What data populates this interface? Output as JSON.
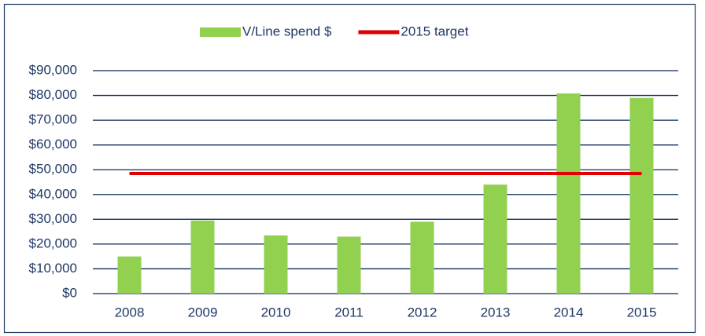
{
  "chart_data": {
    "type": "bar",
    "categories": [
      "2008",
      "2009",
      "2010",
      "2011",
      "2012",
      "2013",
      "2014",
      "2015"
    ],
    "series": [
      {
        "name": "V/Line spend $",
        "type": "bar",
        "color": "#92d050",
        "values": [
          15000,
          29500,
          23500,
          23000,
          29000,
          44000,
          80800,
          79000
        ]
      },
      {
        "name": "2015 target",
        "type": "line",
        "color": "#e00000",
        "values": [
          48500,
          48500,
          48500,
          48500,
          48500,
          48500,
          48500,
          48500
        ]
      }
    ],
    "ylim": [
      0,
      90000
    ],
    "yticks": [
      {
        "value": 0,
        "label": "$0"
      },
      {
        "value": 10000,
        "label": "$10,000"
      },
      {
        "value": 20000,
        "label": "$20,000"
      },
      {
        "value": 30000,
        "label": "$30,000"
      },
      {
        "value": 40000,
        "label": "$40,000"
      },
      {
        "value": 50000,
        "label": "$50,000"
      },
      {
        "value": 60000,
        "label": "$60,000"
      },
      {
        "value": 70000,
        "label": "$70,000"
      },
      {
        "value": 80000,
        "label": "$80,000"
      },
      {
        "value": 90000,
        "label": "$90,000"
      }
    ],
    "grid": true,
    "legend": "top"
  }
}
